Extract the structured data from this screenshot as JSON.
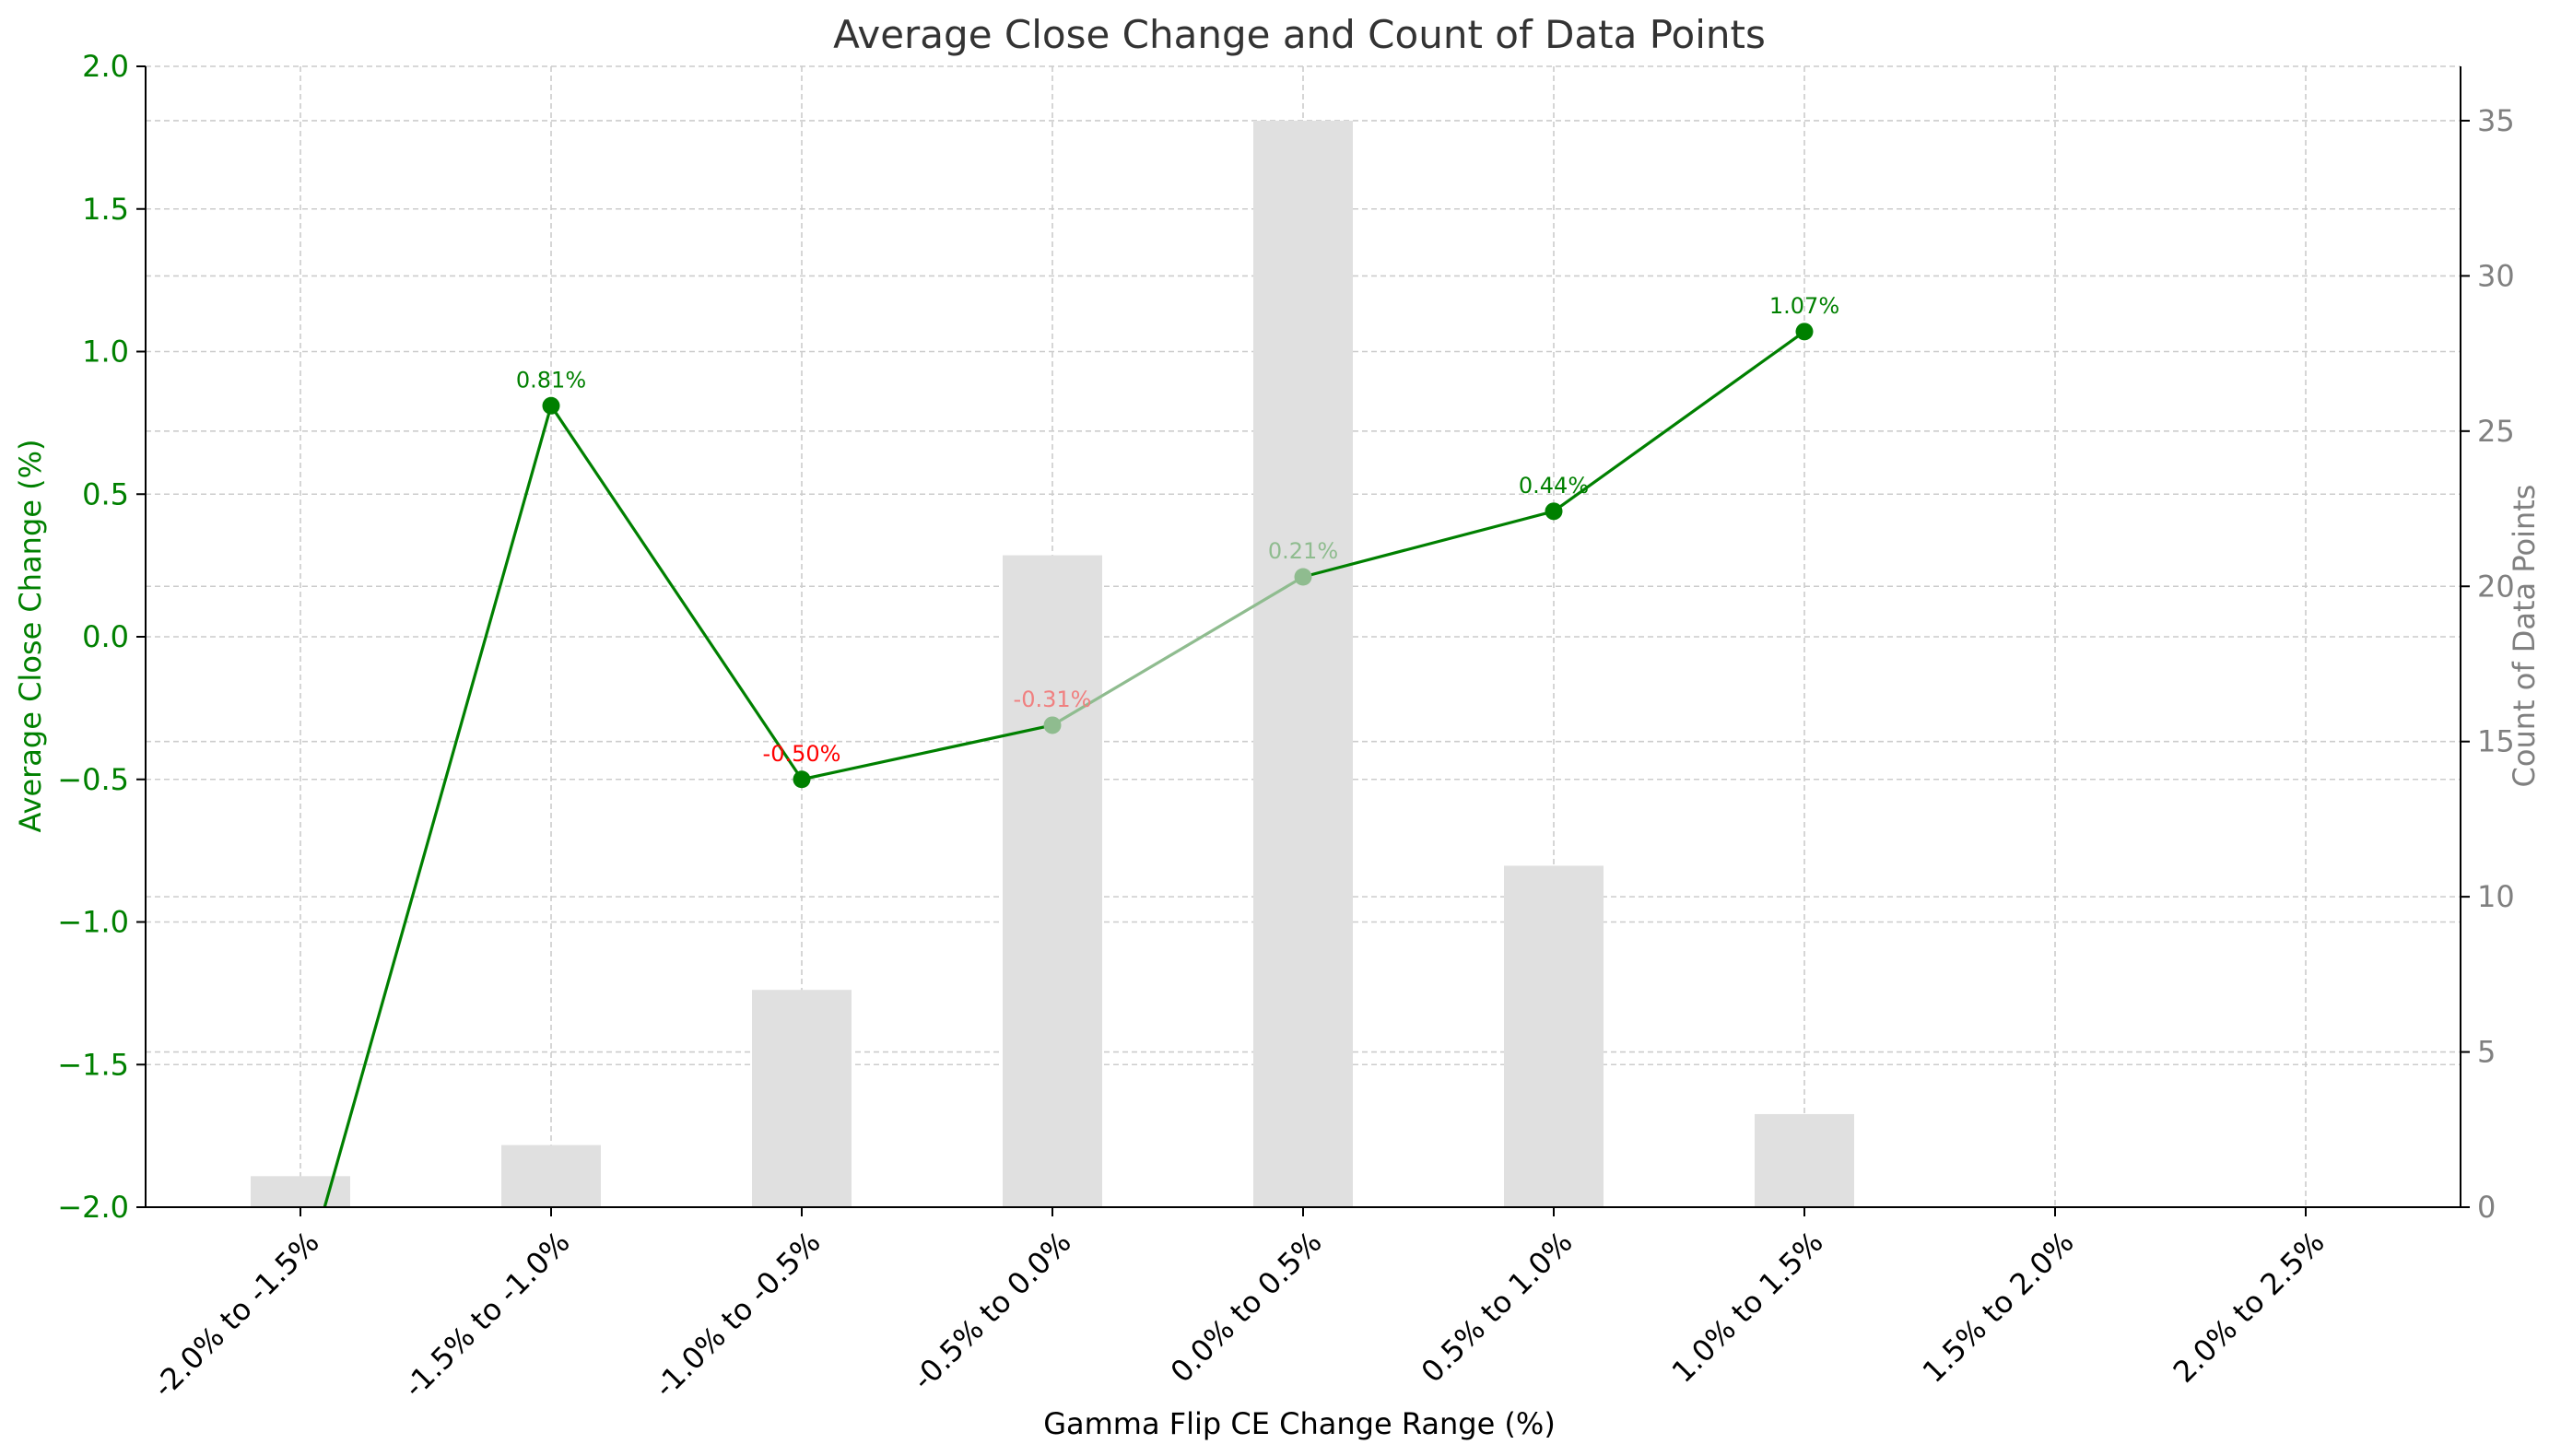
{
  "chart_data": {
    "type": "bar+line",
    "title": "Average Close Change and Count of Data Points",
    "xlabel": "Gamma Flip CE Change Range (%)",
    "ylabel_left": "Average Close Change (%)",
    "ylabel_right": "Count of Data Points",
    "categories": [
      "-2.0% to -1.5%",
      "-1.5% to -1.0%",
      "-1.0% to -0.5%",
      "-0.5% to 0.0%",
      "0.0% to 0.5%",
      "0.5% to 1.0%",
      "1.0% to 1.5%",
      "1.5% to 2.0%",
      "2.0% to 2.5%"
    ],
    "ylim_left": [
      -2.0,
      2.0
    ],
    "ylim_right": [
      0,
      36.75
    ],
    "yticks_left": [
      -2.0,
      -1.5,
      -1.0,
      -0.5,
      0.0,
      0.5,
      1.0,
      1.5,
      2.0
    ],
    "ytick_labels_left": [
      "−2.0",
      "−1.5",
      "−1.0",
      "−0.5",
      "0.0",
      "0.5",
      "1.0",
      "1.5",
      "2.0"
    ],
    "yticks_right": [
      0,
      5,
      10,
      15,
      20,
      25,
      30,
      35
    ],
    "ytick_labels_right": [
      "0",
      "5",
      "10",
      "15",
      "20",
      "25",
      "30",
      "35"
    ],
    "grid": true,
    "series": [
      {
        "type": "bar",
        "axis": "right",
        "values": [
          1,
          2,
          7,
          21,
          35,
          11,
          3,
          0,
          0
        ]
      },
      {
        "type": "line",
        "axis": "left",
        "values": [
          -2.3,
          0.81,
          -0.5,
          -0.31,
          0.21,
          0.44,
          1.07,
          null,
          null
        ],
        "labels": [
          "",
          "0.81%",
          "-0.50%",
          "-0.31%",
          "0.21%",
          "0.44%",
          "1.07%",
          "",
          ""
        ],
        "label_colors": [
          "#008000",
          "#008000",
          "#ff0000",
          "#f08080",
          "#8fbc8f",
          "#008000",
          "#008000",
          "#008000",
          "#008000"
        ],
        "marker_colors": [
          "#008000",
          "#008000",
          "#008000",
          "#8fbc8f",
          "#8fbc8f",
          "#008000",
          "#008000",
          "#008000",
          "#008000"
        ]
      }
    ],
    "colors": {
      "bar": "#e0e0e0",
      "line": "#008000",
      "left_axis": "#008000",
      "right_axis": "#808080"
    }
  }
}
